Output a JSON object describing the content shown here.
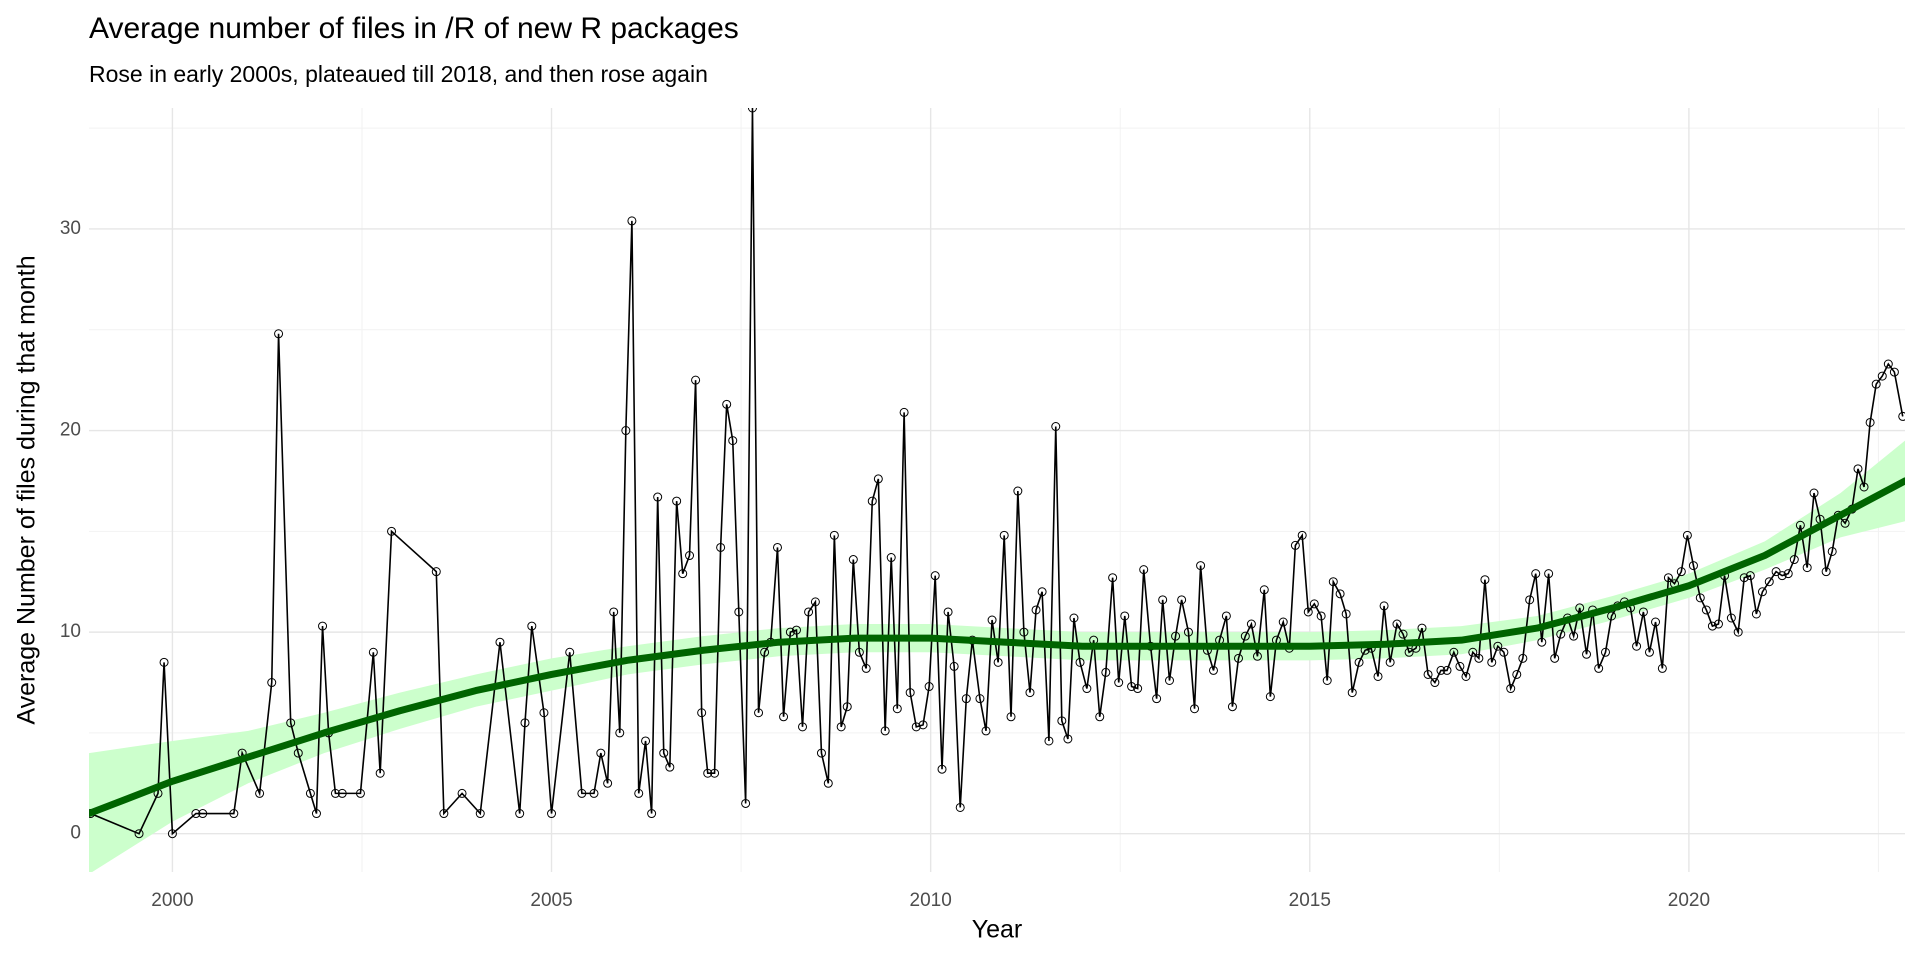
{
  "chart_data": {
    "type": "line",
    "title": "Average number of files in /R of new R packages",
    "subtitle": "Rose in early 2000s, plateaued till 2018, and then rose again",
    "x_label": "Year",
    "y_label": "Average Number of files during that month",
    "xlim": [
      1998.9,
      2022.85
    ],
    "ylim": [
      -1.9,
      36
    ],
    "xticks": [
      2000,
      2005,
      2010,
      2015,
      2020
    ],
    "yticks": [
      0,
      10,
      20,
      30
    ],
    "grid": true,
    "series": [
      {
        "color": "#000000",
        "x": [
          1998.92,
          1999.56,
          1999.81,
          1999.89,
          2000.0,
          2000.31,
          2000.4,
          2000.81,
          2000.92,
          2001.15,
          2001.31,
          2001.4,
          2001.56,
          2001.66,
          2001.82,
          2001.9,
          2001.98,
          2002.06,
          2002.15,
          2002.24,
          2002.48,
          2002.65,
          2002.74,
          2002.89,
          2003.48,
          2003.58,
          2003.82,
          2004.06,
          2004.32,
          2004.58,
          2004.65,
          2004.74,
          2004.9,
          2005.0,
          2005.24,
          2005.4,
          2005.56,
          2005.65,
          2005.74,
          2005.82,
          2005.9,
          2005.98,
          2006.06,
          2006.15,
          2006.24,
          2006.32,
          2006.4,
          2006.48,
          2006.56,
          2006.65,
          2006.73,
          2006.82,
          2006.9,
          2006.98,
          2007.06,
          2007.15,
          2007.23,
          2007.31,
          2007.39,
          2007.47,
          2007.56,
          2007.65,
          2007.73,
          2007.81,
          2007.89,
          2007.98,
          2008.06,
          2008.15,
          2008.23,
          2008.31,
          2008.39,
          2008.48,
          2008.56,
          2008.65,
          2008.73,
          2008.82,
          2008.9,
          2008.98,
          2009.06,
          2009.15,
          2009.23,
          2009.31,
          2009.4,
          2009.48,
          2009.56,
          2009.65,
          2009.73,
          2009.81,
          2009.9,
          2009.98,
          2010.06,
          2010.15,
          2010.23,
          2010.31,
          2010.39,
          2010.47,
          2010.55,
          2010.65,
          2010.73,
          2010.81,
          2010.89,
          2010.97,
          2011.06,
          2011.15,
          2011.23,
          2011.31,
          2011.39,
          2011.47,
          2011.56,
          2011.65,
          2011.73,
          2011.81,
          2011.89,
          2011.97,
          2012.06,
          2012.15,
          2012.23,
          2012.31,
          2012.4,
          2012.48,
          2012.56,
          2012.65,
          2012.73,
          2012.81,
          2012.9,
          2012.98,
          2013.06,
          2013.15,
          2013.23,
          2013.31,
          2013.4,
          2013.48,
          2013.56,
          2013.65,
          2013.73,
          2013.81,
          2013.9,
          2013.98,
          2014.06,
          2014.15,
          2014.23,
          2014.31,
          2014.4,
          2014.48,
          2014.56,
          2014.65,
          2014.73,
          2014.81,
          2014.9,
          2014.98,
          2015.06,
          2015.15,
          2015.23,
          2015.31,
          2015.4,
          2015.48,
          2015.56,
          2015.65,
          2015.73,
          2015.81,
          2015.9,
          2015.98,
          2016.06,
          2016.15,
          2016.23,
          2016.31,
          2016.4,
          2016.48,
          2016.56,
          2016.65,
          2016.73,
          2016.81,
          2016.9,
          2016.98,
          2017.06,
          2017.15,
          2017.23,
          2017.31,
          2017.4,
          2017.48,
          2017.56,
          2017.65,
          2017.73,
          2017.81,
          2017.9,
          2017.98,
          2018.06,
          2018.15,
          2018.23,
          2018.31,
          2018.4,
          2018.48,
          2018.56,
          2018.65,
          2018.73,
          2018.81,
          2018.9,
          2018.98,
          2019.06,
          2019.15,
          2019.23,
          2019.31,
          2019.4,
          2019.48,
          2019.56,
          2019.65,
          2019.73,
          2019.81,
          2019.9,
          2019.98,
          2020.06,
          2020.15,
          2020.23,
          2020.31,
          2020.39,
          2020.47,
          2020.56,
          2020.65,
          2020.73,
          2020.81,
          2020.89,
          2020.97,
          2021.06,
          2021.15,
          2021.23,
          2021.31,
          2021.39,
          2021.47,
          2021.56,
          2021.65,
          2021.73,
          2021.81,
          2021.89,
          2021.97,
          2022.06,
          2022.15,
          2022.23,
          2022.31,
          2022.39,
          2022.47,
          2022.55,
          2022.63,
          2022.71,
          2022.82
        ],
        "values": [
          1,
          0,
          2,
          8.5,
          0,
          1,
          1,
          1,
          4,
          2,
          7.5,
          24.8,
          5.5,
          4,
          2,
          1,
          10.3,
          5,
          2,
          2,
          2,
          9,
          3,
          15,
          13,
          1,
          2,
          1,
          9.5,
          1,
          5.5,
          10.3,
          6,
          1,
          9,
          2,
          2,
          4,
          2.5,
          11,
          5,
          20,
          30.4,
          2,
          4.6,
          1,
          16.7,
          4,
          3.3,
          16.5,
          12.9,
          13.8,
          22.5,
          6,
          3,
          3,
          14.2,
          21.3,
          19.5,
          11,
          1.5,
          36,
          6,
          9,
          9.5,
          14.2,
          5.8,
          10,
          10.1,
          5.3,
          11,
          11.5,
          4,
          2.5,
          14.8,
          5.3,
          6.3,
          13.6,
          9,
          8.2,
          16.5,
          17.6,
          5.1,
          13.7,
          6.2,
          20.9,
          7,
          5.3,
          5.4,
          7.3,
          12.8,
          3.2,
          11,
          8.3,
          1.3,
          6.7,
          9.6,
          6.7,
          5.1,
          10.6,
          8.5,
          14.8,
          5.8,
          17,
          10,
          7,
          11.1,
          12,
          4.6,
          20.2,
          5.6,
          4.7,
          10.7,
          8.5,
          7.2,
          9.6,
          5.8,
          8,
          12.7,
          7.5,
          10.8,
          7.3,
          7.2,
          13.1,
          9.3,
          6.7,
          11.6,
          7.6,
          9.8,
          11.6,
          10,
          6.2,
          13.3,
          9.1,
          8.1,
          9.6,
          10.8,
          6.3,
          8.7,
          9.8,
          10.4,
          8.8,
          12.1,
          6.8,
          9.6,
          10.5,
          9.2,
          14.3,
          14.8,
          11,
          11.4,
          10.8,
          7.6,
          12.5,
          11.9,
          10.9,
          7,
          8.5,
          9.1,
          9.2,
          7.8,
          11.3,
          8.5,
          10.4,
          9.9,
          9,
          9.2,
          10.2,
          7.9,
          7.5,
          8.1,
          8.1,
          9,
          8.3,
          7.8,
          9,
          8.7,
          12.6,
          8.5,
          9.3,
          9,
          7.2,
          7.9,
          8.7,
          11.6,
          12.9,
          9.5,
          12.9,
          8.7,
          9.9,
          10.7,
          9.8,
          11.2,
          8.9,
          11.1,
          8.2,
          9,
          10.8,
          11.3,
          11.5,
          11.2,
          9.3,
          11,
          9,
          10.5,
          8.2,
          12.7,
          12.4,
          13,
          14.8,
          13.3,
          11.7,
          11.1,
          10.3,
          10.4,
          12.8,
          10.7,
          10,
          12.7,
          12.8,
          10.9,
          12,
          12.5,
          13,
          12.8,
          12.9,
          13.6,
          15.3,
          13.2,
          16.9,
          15.6,
          13,
          14,
          15.8,
          15.4,
          16.1,
          18.1,
          17.2,
          20.4,
          22.3,
          22.7,
          23.3,
          22.9,
          20.7
        ]
      }
    ],
    "smooth": {
      "color": "#006400",
      "band_color": "#ccffcc",
      "x": [
        1998.9,
        2000,
        2001,
        2002,
        2003,
        2004,
        2005,
        2006,
        2007,
        2008,
        2009,
        2010,
        2011,
        2012,
        2013,
        2014,
        2015,
        2016,
        2017,
        2018,
        2019,
        2020,
        2021,
        2022,
        2022.85
      ],
      "values": [
        1,
        2.6,
        3.8,
        5,
        6.1,
        7.1,
        7.9,
        8.6,
        9.1,
        9.5,
        9.7,
        9.7,
        9.5,
        9.3,
        9.3,
        9.3,
        9.3,
        9.4,
        9.6,
        10.2,
        11.2,
        12.3,
        13.8,
        15.8,
        17.5
      ],
      "lower": [
        -2,
        0.6,
        2.5,
        4,
        5.2,
        6.3,
        7.1,
        7.9,
        8.4,
        8.8,
        9,
        9,
        8.8,
        8.6,
        8.6,
        8.6,
        8.6,
        8.7,
        8.9,
        9.6,
        10.6,
        11.7,
        13.1,
        14.7,
        15.5
      ],
      "upper": [
        4,
        4.6,
        5.1,
        6,
        7,
        7.9,
        8.7,
        9.3,
        9.8,
        10.2,
        10.4,
        10.4,
        10.2,
        10,
        10,
        10,
        10,
        10.1,
        10.3,
        10.8,
        11.8,
        12.9,
        14.5,
        16.9,
        19.5
      ]
    }
  }
}
